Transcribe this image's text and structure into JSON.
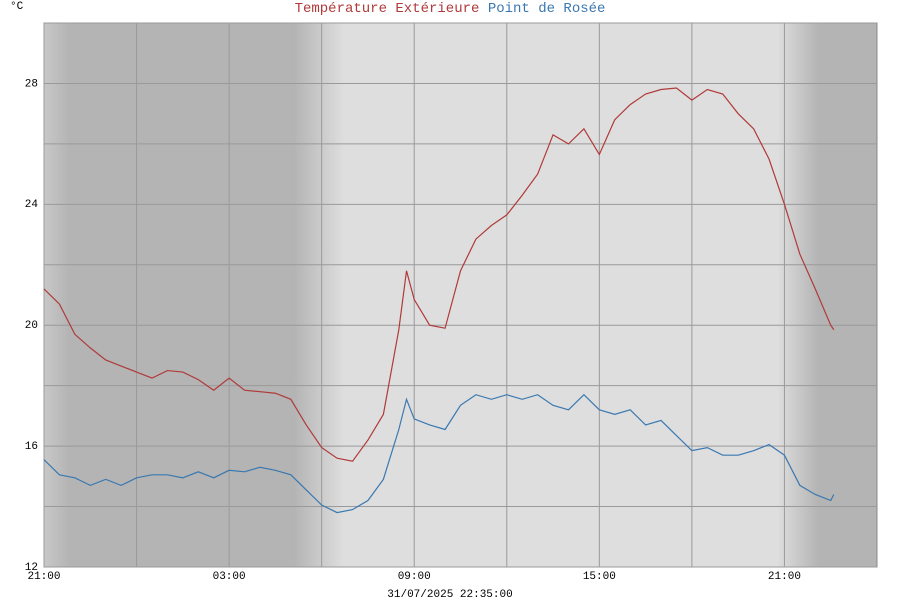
{
  "chart_data": {
    "type": "line",
    "unit_label": "°C",
    "footer": "31/07/2025 22:35:00",
    "x": [
      0,
      0.5,
      1,
      1.5,
      2,
      2.5,
      3,
      3.5,
      4,
      4.5,
      5,
      5.5,
      6,
      6.5,
      7,
      7.5,
      8,
      8.5,
      9,
      9.5,
      10,
      10.5,
      11,
      11.5,
      11.75,
      12,
      12.5,
      13,
      13.5,
      14,
      14.5,
      15,
      15.5,
      16,
      16.5,
      17,
      17.5,
      18,
      18.5,
      19,
      19.5,
      20,
      20.5,
      21,
      21.5,
      22,
      22.5,
      23,
      23.5,
      24,
      24.5,
      25,
      25.5,
      25.6
    ],
    "series": [
      {
        "name": "Température Extérieure",
        "color": "#b03a3a",
        "values": [
          21.2,
          20.7,
          19.7,
          19.25,
          18.85,
          18.65,
          18.45,
          18.25,
          18.5,
          18.45,
          18.2,
          17.85,
          18.25,
          17.85,
          17.8,
          17.75,
          17.55,
          16.7,
          15.95,
          15.6,
          15.5,
          16.2,
          17.05,
          19.85,
          21.8,
          20.85,
          20.0,
          19.9,
          21.8,
          22.85,
          23.3,
          23.65,
          24.3,
          25.0,
          26.3,
          26.0,
          26.5,
          25.65,
          26.8,
          27.3,
          27.65,
          27.8,
          27.85,
          27.45,
          27.8,
          27.65,
          27.0,
          26.5,
          25.5,
          24.0,
          22.35,
          21.2,
          20.0,
          19.85
        ]
      },
      {
        "name": "Point de Rosée",
        "color": "#3a78b0",
        "values": [
          15.55,
          15.05,
          14.95,
          14.7,
          14.9,
          14.7,
          14.95,
          15.05,
          15.05,
          14.95,
          15.15,
          14.95,
          15.2,
          15.15,
          15.3,
          15.2,
          15.05,
          14.55,
          14.05,
          13.8,
          13.9,
          14.2,
          14.9,
          16.55,
          17.55,
          16.9,
          16.7,
          16.55,
          17.35,
          17.7,
          17.55,
          17.7,
          17.55,
          17.7,
          17.35,
          17.2,
          17.7,
          17.2,
          17.05,
          17.2,
          16.7,
          16.85,
          16.35,
          15.85,
          15.95,
          15.7,
          15.7,
          15.85,
          16.05,
          15.7,
          14.7,
          14.4,
          14.2,
          14.4
        ]
      }
    ],
    "xlim": [
      0,
      27
    ],
    "xticks": [
      {
        "value": 0,
        "label": "21:00"
      },
      {
        "value": 6,
        "label": "03:00"
      },
      {
        "value": 12,
        "label": "09:00"
      },
      {
        "value": 18,
        "label": "15:00"
      },
      {
        "value": 24,
        "label": "21:00"
      }
    ],
    "xgrid_minor": [
      3,
      9,
      15,
      21
    ],
    "ylim": [
      12,
      30
    ],
    "yticks": [
      12,
      16,
      20,
      24,
      28
    ],
    "ygrid_minor": [
      14,
      18,
      22,
      26,
      30
    ],
    "grid": true
  }
}
